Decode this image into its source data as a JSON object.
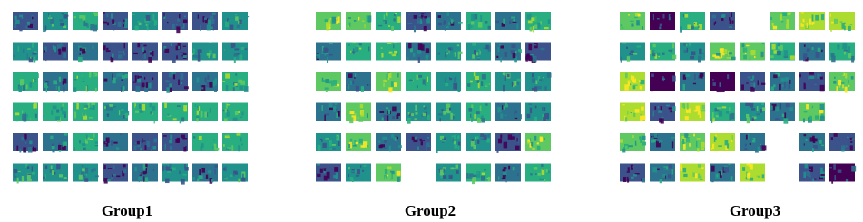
{
  "groups": [
    {
      "label": "Group1"
    },
    {
      "label": "Group2"
    },
    {
      "label": "Group3"
    }
  ]
}
